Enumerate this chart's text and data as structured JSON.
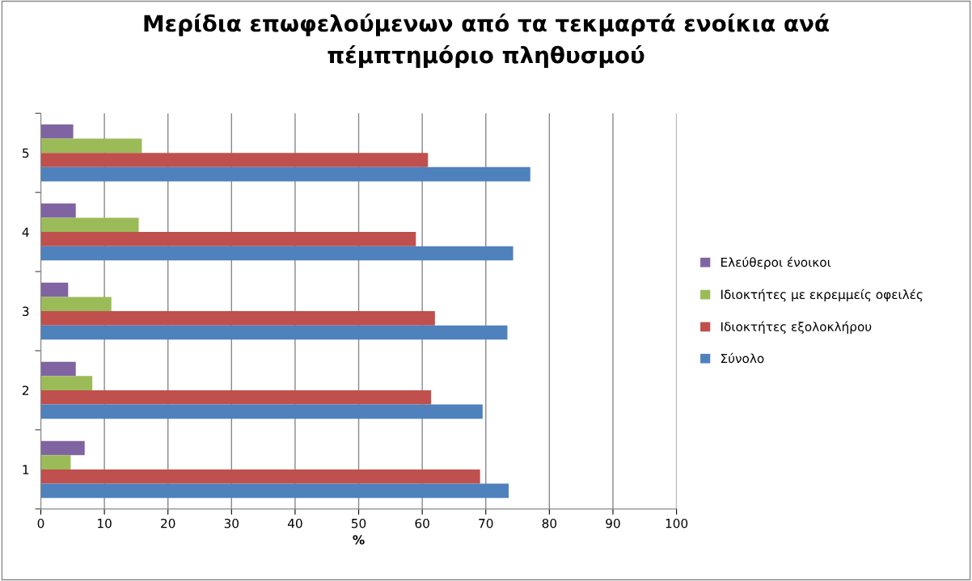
{
  "chart_data": {
    "type": "bar",
    "orientation": "horizontal",
    "title": "Μερίδια επωφελούμενων από τα τεκμαρτά ενοίκια ανά\nπέμπτημόριο πληθυσμού",
    "xlabel": "%",
    "categories": [
      "5",
      "4",
      "3",
      "2",
      "1"
    ],
    "series": [
      {
        "name": "Ελεύθεροι ένοικοι",
        "color": "#8064a2",
        "values": [
          5.1,
          5.5,
          4.3,
          5.5,
          6.9
        ]
      },
      {
        "name": "Ιδιοκτήτες με εκρεμμείς οφειλές",
        "color": "#9bbb59",
        "values": [
          15.9,
          15.4,
          11.1,
          8.1,
          4.7
        ]
      },
      {
        "name": "Ιδιοκτήτες εξολοκλήρου",
        "color": "#c0504d",
        "values": [
          60.9,
          59.0,
          62.0,
          61.4,
          69.1
        ]
      },
      {
        "name": "Σύνολο",
        "color": "#4f81bd",
        "values": [
          77.0,
          74.3,
          73.4,
          69.5,
          73.6
        ]
      }
    ],
    "xlim": [
      0,
      100
    ],
    "xticks": [
      0,
      10,
      20,
      30,
      40,
      50,
      60,
      70,
      80,
      90,
      100
    ],
    "grid": "x",
    "legend": "right"
  }
}
